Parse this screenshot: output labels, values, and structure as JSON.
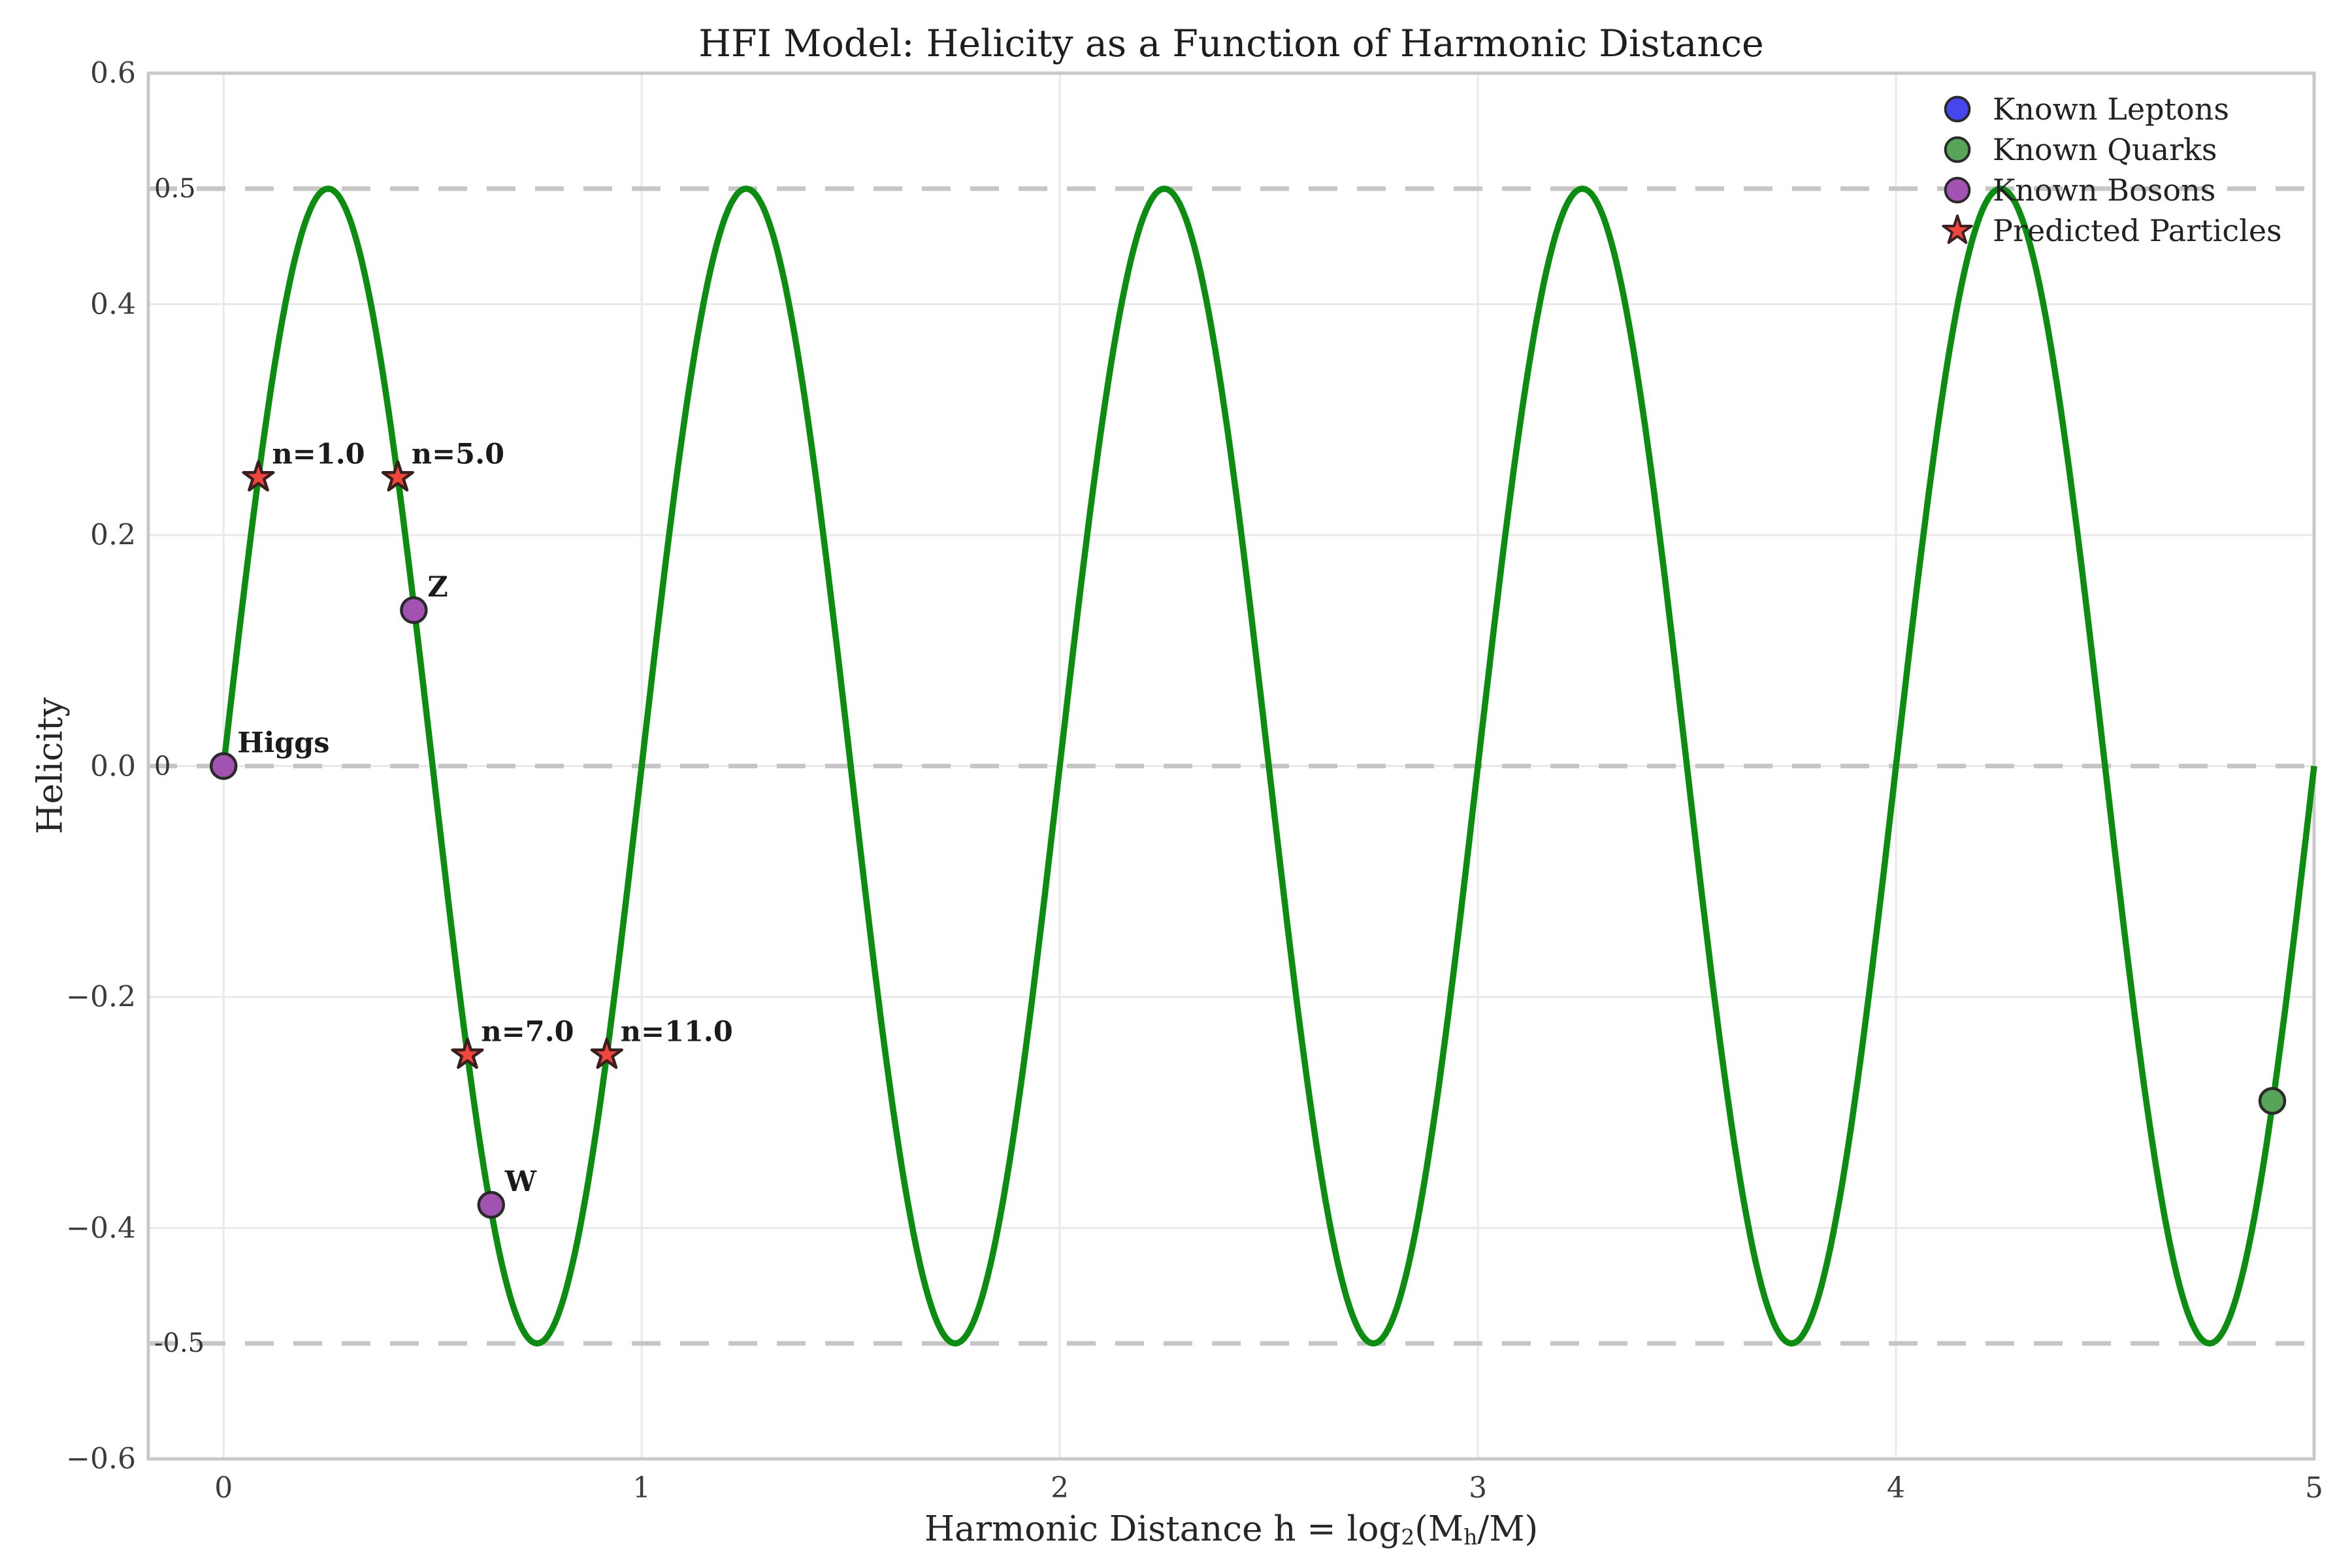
{
  "chart_data": {
    "type": "line",
    "title": "HFI Model: Helicity as a Function of Harmonic Distance",
    "xlabel": {
      "prefix": "Harmonic Distance h = log",
      "sub": "2",
      "mid": "(M",
      "sub2": "h",
      "suffix": "/M)"
    },
    "ylabel": "Helicity",
    "xlim": [
      -0.18,
      5.0
    ],
    "ylim": [
      -0.6,
      0.6
    ],
    "grid": "on",
    "legend_position": "upper right",
    "legend_frame": false,
    "xticks": [
      {
        "v": 0,
        "label": "0"
      },
      {
        "v": 1,
        "label": "1"
      },
      {
        "v": 2,
        "label": "2"
      },
      {
        "v": 3,
        "label": "3"
      },
      {
        "v": 4,
        "label": "4"
      },
      {
        "v": 5,
        "label": "5"
      }
    ],
    "yticks": [
      {
        "v": 0.6,
        "label": "0.6"
      },
      {
        "v": 0.4,
        "label": "0.4"
      },
      {
        "v": 0.2,
        "label": "0.2"
      },
      {
        "v": 0.0,
        "label": "0.0"
      },
      {
        "v": -0.2,
        "label": "−0.2"
      },
      {
        "v": -0.4,
        "label": "−0.4"
      },
      {
        "v": -0.6,
        "label": "−0.6"
      }
    ],
    "reference_lines": [
      {
        "y": 0.5,
        "label": "0.5"
      },
      {
        "y": 0.0,
        "label": "0"
      },
      {
        "y": -0.5,
        "label": "-0.5"
      }
    ],
    "curve": {
      "name": "helicity-curve",
      "formula": "H(h) = 0.5*sin(2*pi*h)",
      "amplitude": 0.5,
      "period": 1.0,
      "x_domain": [
        0,
        5
      ],
      "color": "#0c8c10"
    },
    "series": [
      {
        "name": "Known Leptons",
        "marker": "circle",
        "color": "#4646ee",
        "edge_color": "#2a2a2a",
        "points": []
      },
      {
        "name": "Known Quarks",
        "marker": "circle",
        "color": "#57a55a",
        "edge_color": "#2a2a2a",
        "points": [
          {
            "x": 4.9,
            "y": -0.29,
            "label": ""
          }
        ]
      },
      {
        "name": "Known Bosons",
        "marker": "circle",
        "color": "#a253b2",
        "edge_color": "#2a2a2a",
        "points": [
          {
            "x": 0.0,
            "y": 0.0,
            "label": "Higgs"
          },
          {
            "x": 0.455,
            "y": 0.135,
            "label": "Z"
          },
          {
            "x": 0.64,
            "y": -0.38,
            "label": "W"
          }
        ]
      },
      {
        "name": "Predicted Particles",
        "marker": "star",
        "color": "#f0463c",
        "edge_color": "#3a1f1f",
        "points": [
          {
            "x": 0.0833,
            "y": 0.25,
            "label": "n=1.0"
          },
          {
            "x": 0.4167,
            "y": 0.25,
            "label": "n=5.0"
          },
          {
            "x": 0.5833,
            "y": -0.25,
            "label": "n=7.0"
          },
          {
            "x": 0.9167,
            "y": -0.25,
            "label": "n=11.0"
          }
        ]
      }
    ],
    "colors": {
      "background": "#ffffff",
      "grid": "#e9e9e9",
      "dashed_line": "#c6c6c6",
      "spine": "#c8c8c8",
      "text": "#262626",
      "point_label": "#1b1b1b"
    }
  }
}
